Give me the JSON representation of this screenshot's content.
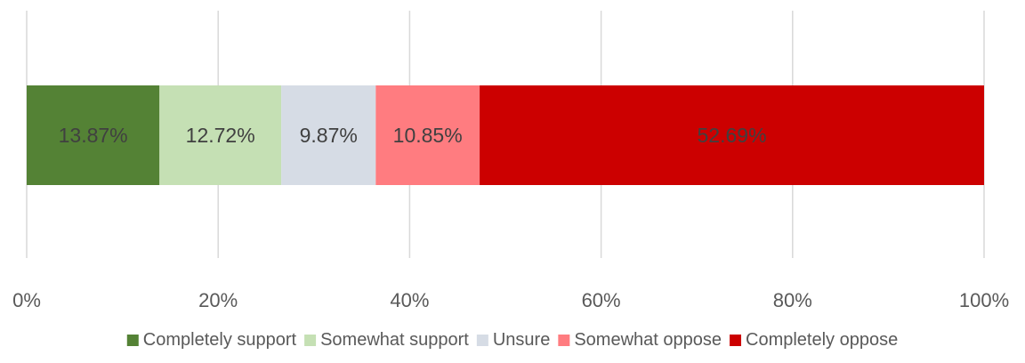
{
  "chart_data": {
    "type": "bar",
    "orientation": "horizontal",
    "stacked": "percent",
    "title": "",
    "xlabel": "",
    "ylabel": "",
    "xlim": [
      0,
      100
    ],
    "x_ticks": [
      0,
      20,
      40,
      60,
      80,
      100
    ],
    "x_tick_labels": [
      "0%",
      "20%",
      "40%",
      "60%",
      "80%",
      "100%"
    ],
    "grid": "vertical",
    "legend_position": "bottom",
    "series": [
      {
        "name": "Completely support",
        "value": 13.87,
        "label": "13.87%",
        "color": "#548235"
      },
      {
        "name": "Somewhat support",
        "value": 12.72,
        "label": "12.72%",
        "color": "#C5E0B4"
      },
      {
        "name": "Unsure",
        "value": 9.87,
        "label": "9.87%",
        "color": "#D6DCE5"
      },
      {
        "name": "Somewhat oppose",
        "value": 10.85,
        "label": "10.85%",
        "color": "#FF7C80"
      },
      {
        "name": "Completely oppose",
        "value": 52.69,
        "label": "52.69%",
        "color": "#CC0000"
      }
    ],
    "label_color": "#404040",
    "tick_color": "#595959",
    "grid_color": "#D9D9D9"
  }
}
